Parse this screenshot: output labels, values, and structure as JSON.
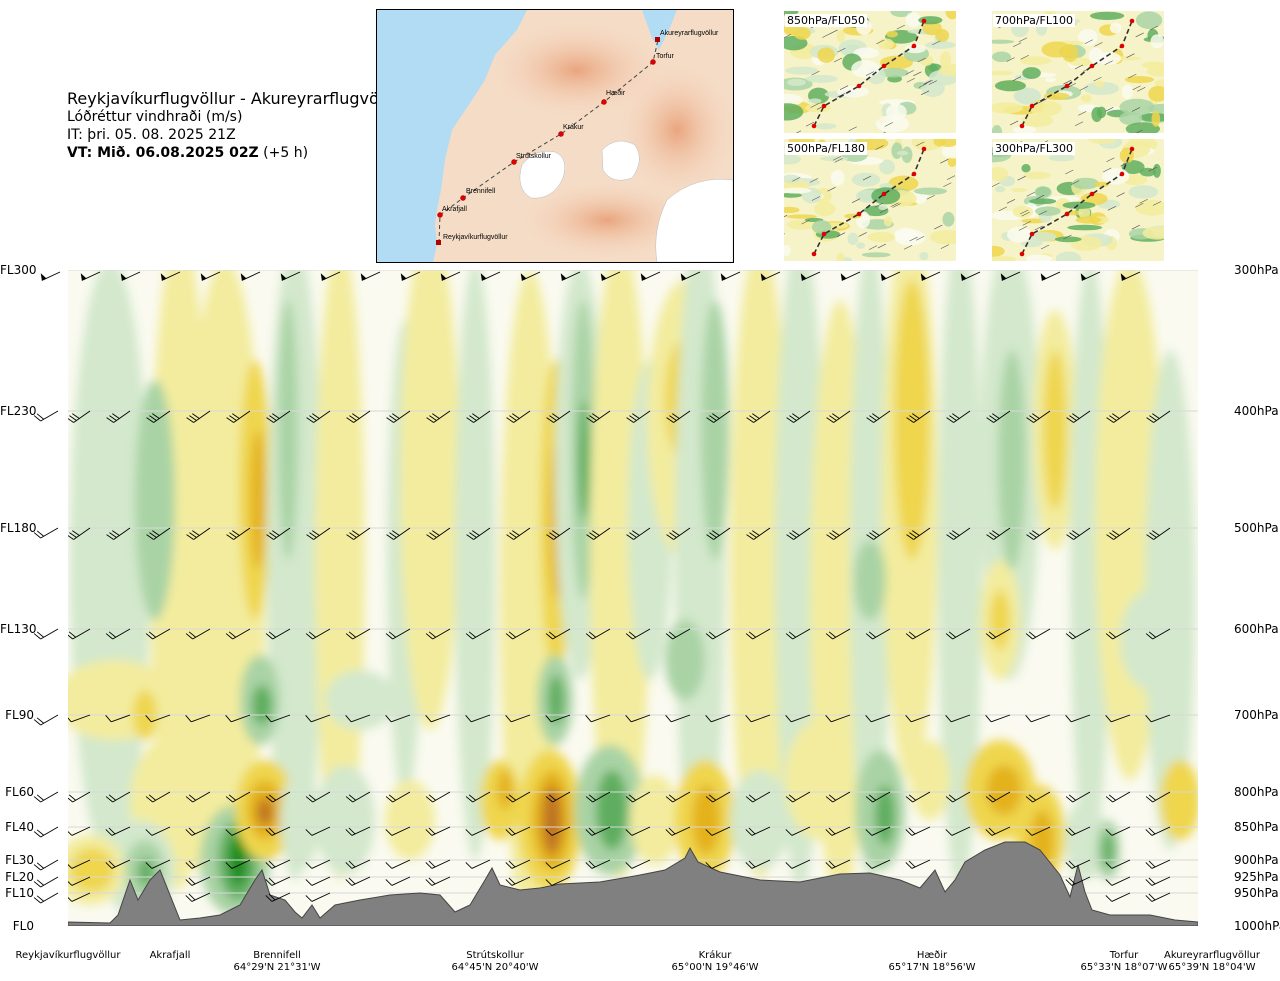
{
  "header": {
    "route": "Reykjavíkurflugvöllur - Akureyrarflugvöllur",
    "parameter": "Lóðréttur vindhraði (m/s)",
    "issue_time": "IT: þri. 05. 08. 2025 21Z",
    "valid_label": "VT: Mið. 06.08.2025 02Z",
    "valid_offset": "(+5 h)"
  },
  "map": {
    "waypoints": [
      "Akureyrarflugvöllur",
      "Torfur",
      "Hæðir",
      "Krákur",
      "Strútskollur",
      "Brennifell",
      "Akrafjall",
      "Reykjavíkurflugvöllur"
    ]
  },
  "level_maps": [
    {
      "label": "850hPa/FL050"
    },
    {
      "label": "700hPa/FL100"
    },
    {
      "label": "500hPa/FL180"
    },
    {
      "label": "300hPa/FL300"
    }
  ],
  "chart_data": {
    "type": "heatmap",
    "title": "Lóðréttur vindhraði (m/s)",
    "y_left_labels": [
      "FL300",
      "FL230",
      "FL180",
      "FL130",
      "FL90",
      "FL60",
      "FL40",
      "FL30",
      "FL20",
      "FL10",
      "FL0"
    ],
    "y_right_labels": [
      "300hPa",
      "400hPa",
      "500hPa",
      "600hPa",
      "700hPa",
      "800hPa",
      "850hPa",
      "900hPa",
      "925hPa",
      "950hPa",
      "1000hPa"
    ],
    "pressure_levels": [
      300,
      400,
      500,
      600,
      700,
      800,
      850,
      900,
      925,
      950,
      1000
    ],
    "x_locations": [
      {
        "name": "Reykjavíkurflugvöllur",
        "coord": ""
      },
      {
        "name": "Akrafjall",
        "coord": ""
      },
      {
        "name": "Brennifell",
        "coord": "64°29'N 21°31'W"
      },
      {
        "name": "Strútskollur",
        "coord": "64°45'N 20°40'W"
      },
      {
        "name": "Krákur",
        "coord": "65°00'N 19°46'W"
      },
      {
        "name": "Hæðir",
        "coord": "65°17'N 18°56'W"
      },
      {
        "name": "Torfur",
        "coord": "65°33'N 18°07'W"
      },
      {
        "name": "Akureyrarflugvöllur",
        "coord": "65°39'N 18°04'W"
      }
    ],
    "colors": {
      "down_strong": "#138c13",
      "down_moderate": "#5fae5f",
      "down_weak": "#a9d3a5",
      "down_slight": "#d3e8cc",
      "neutral": "#fafaf0",
      "up_slight": "#f3ec9e",
      "up_weak": "#efd64d",
      "up_moderate": "#e4b21e",
      "up_strong": "#c07422",
      "terrain": "#808080"
    },
    "grid": true
  }
}
